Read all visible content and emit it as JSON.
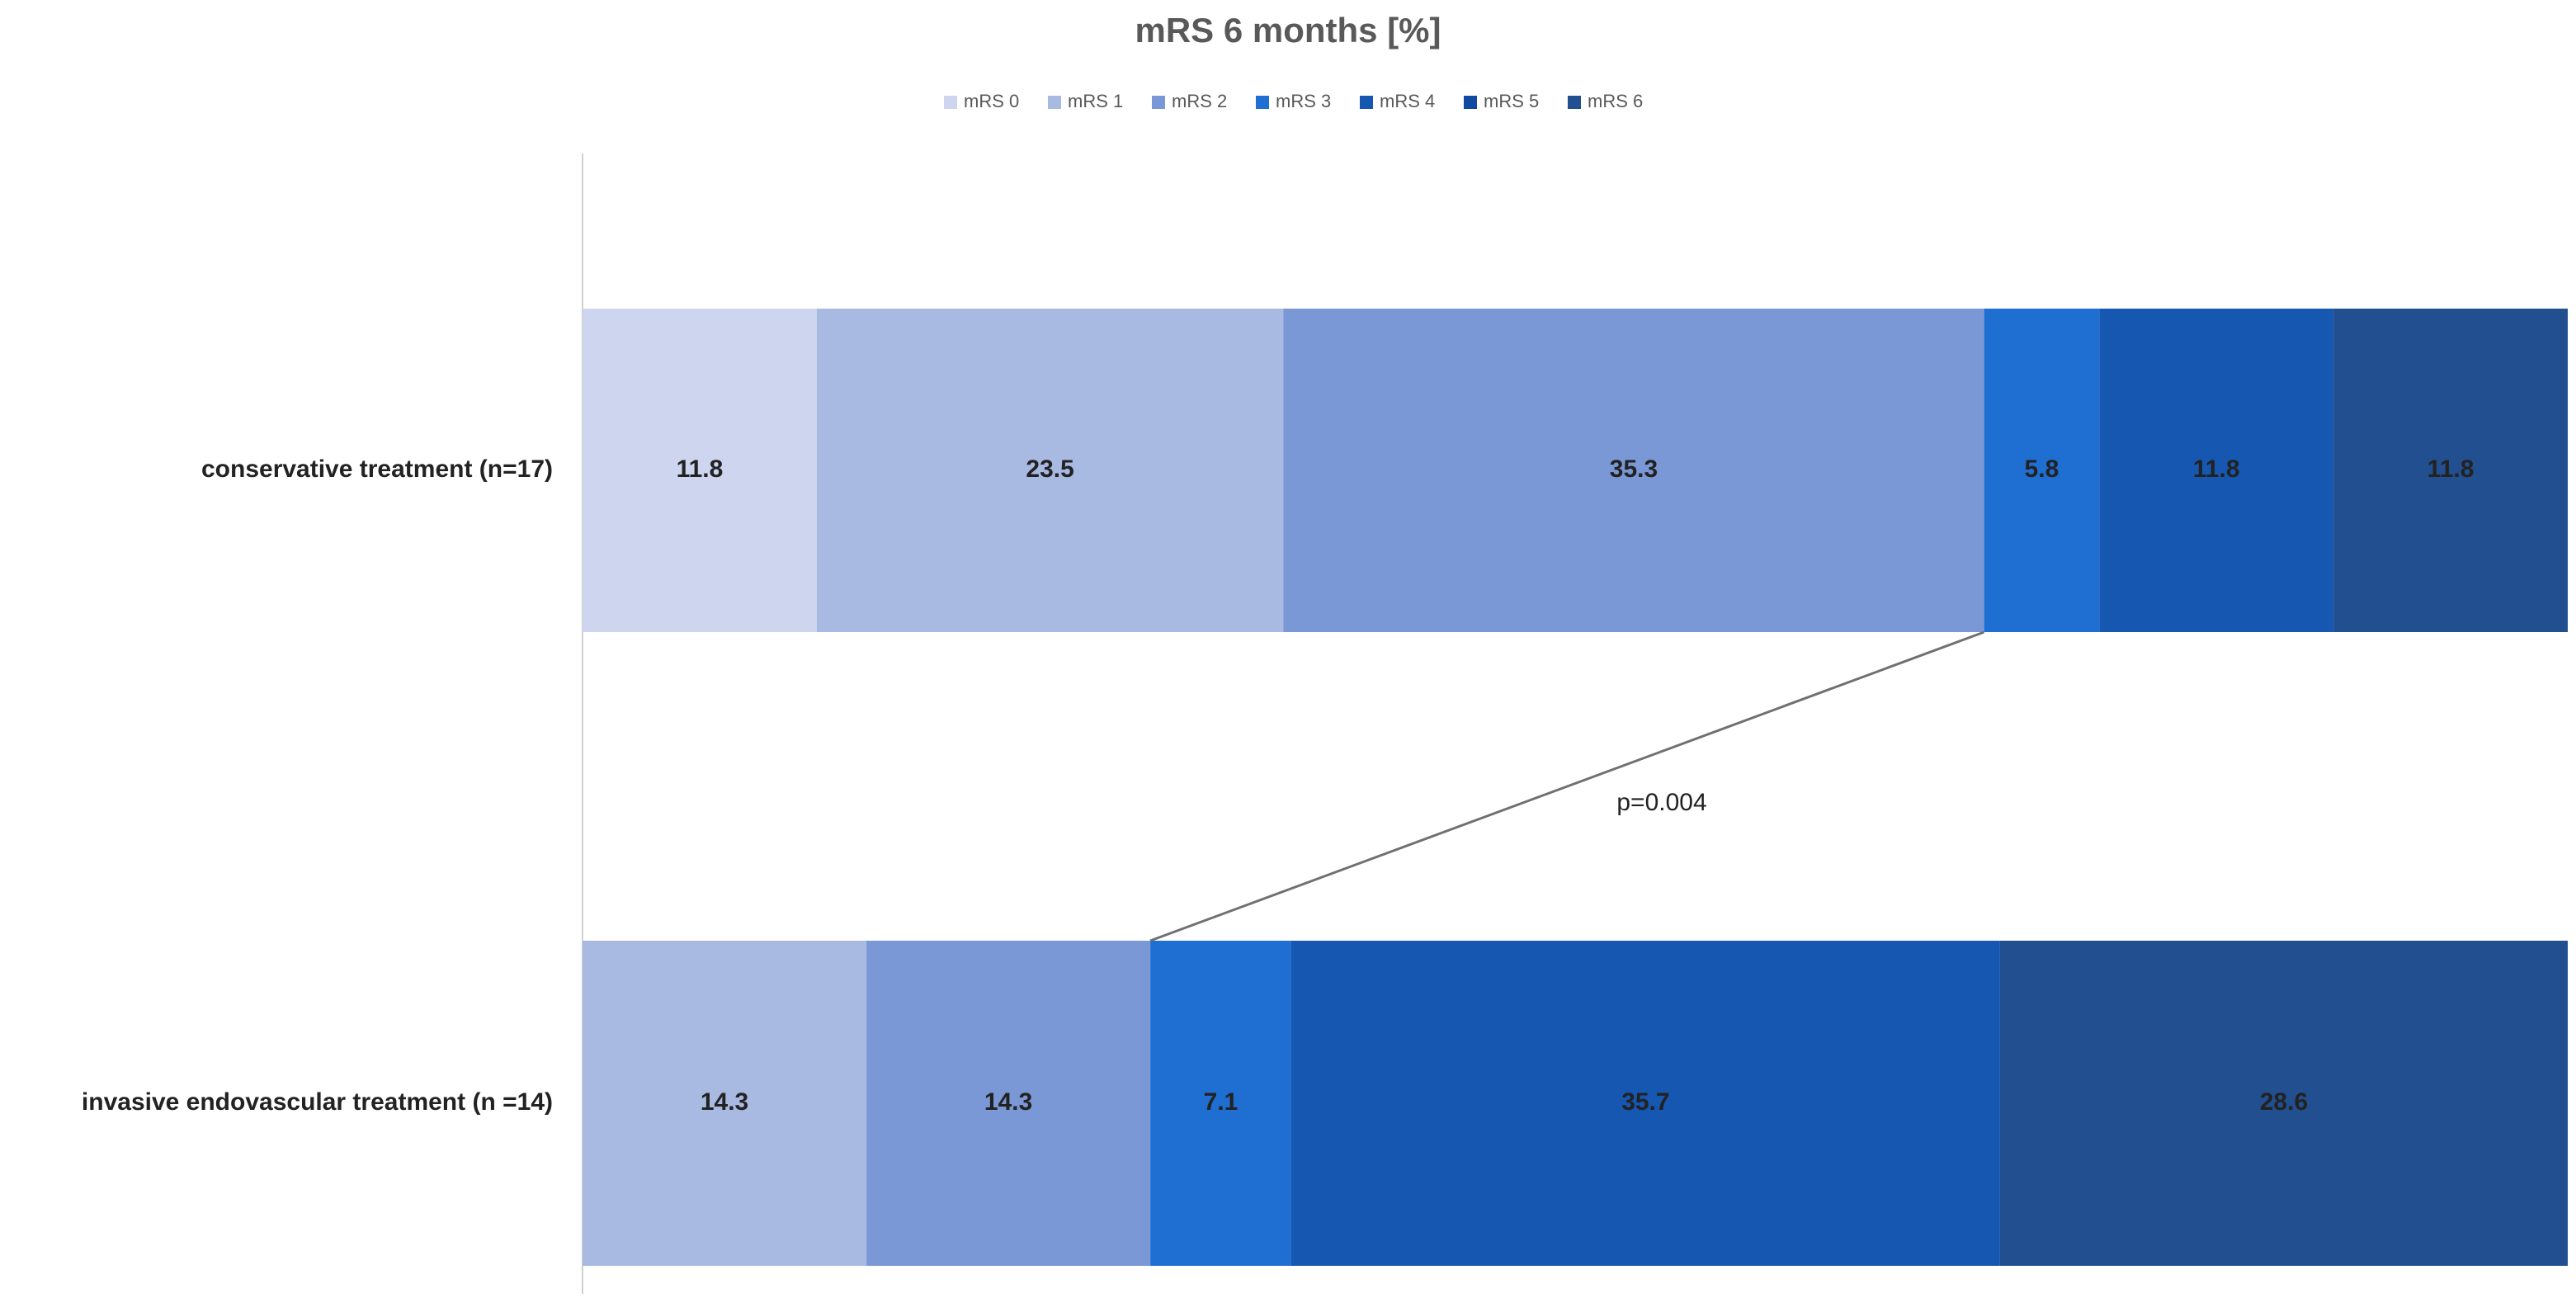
{
  "chart_data": {
    "type": "stacked-bar-horizontal",
    "title": "mRS 6 months [%]",
    "categories": [
      "conservative treatment (n=17)",
      "invasive endovascular treatment (n =14)"
    ],
    "series": [
      {
        "name": "mRS 0",
        "color": "#cdd6ee",
        "values": [
          11.8,
          0
        ]
      },
      {
        "name": "mRS 1",
        "color": "#a8b9e2",
        "values": [
          23.5,
          14.3
        ]
      },
      {
        "name": "mRS 2",
        "color": "#7b98d6",
        "values": [
          35.3,
          14.3
        ]
      },
      {
        "name": "mRS 3",
        "color": "#1f6fd2",
        "values": [
          5.8,
          7.1
        ]
      },
      {
        "name": "mRS 4",
        "color": "#1657b2",
        "values": [
          11.8,
          35.7
        ]
      },
      {
        "name": "mRS 5",
        "color": "#0f4aa0",
        "values": [
          0,
          0
        ]
      },
      {
        "name": "mRS 6",
        "color": "#224f90",
        "values": [
          11.8,
          28.6
        ]
      }
    ],
    "xlim": [
      0,
      100
    ],
    "annotation": "p=0.004"
  }
}
